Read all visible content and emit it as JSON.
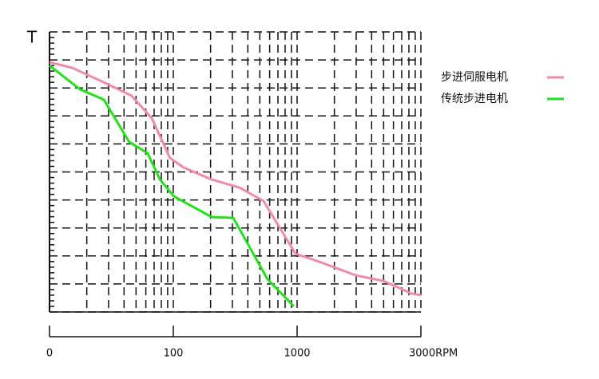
{
  "chart_data": {
    "type": "line",
    "ylabel": "T",
    "xlog": true,
    "xlim": [
      10,
      10000
    ],
    "xticks": [
      {
        "value": 10,
        "label": "0"
      },
      100,
      1000,
      {
        "value": 10000,
        "label": "3000RPM"
      }
    ],
    "ylim": [
      0,
      10
    ],
    "yticks": [
      0,
      1,
      2,
      3,
      4,
      5,
      6,
      7,
      8,
      9,
      10
    ],
    "grid": true,
    "legend": "right",
    "series": [
      {
        "name": "步进伺服电机",
        "color": "#f08aa8",
        "x": [
          10,
          15.2,
          27.5,
          46,
          67,
          94,
          121,
          204,
          343,
          536,
          970,
          1520,
          2960,
          4980,
          8370,
          10000
        ],
        "values": [
          8.92,
          8.72,
          8.2,
          7.72,
          6.92,
          5.5,
          5.16,
          4.73,
          4.44,
          3.96,
          2.08,
          1.79,
          1.31,
          1.11,
          0.66,
          0.6
        ]
      },
      {
        "name": "传统步进电机",
        "color": "#22e01a",
        "x": [
          10,
          17.6,
          27.5,
          44,
          62,
          78,
          101,
          204,
          305,
          577,
          942
        ],
        "values": [
          8.8,
          7.95,
          7.58,
          6.07,
          5.67,
          4.73,
          4.13,
          3.39,
          3.36,
          1.17,
          0.2
        ]
      }
    ]
  }
}
